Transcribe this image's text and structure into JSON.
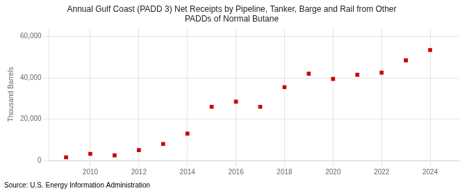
{
  "chart_data": {
    "type": "scatter",
    "title": "Annual Gulf Coast (PADD 3) Net Receipts by Pipeline, Tanker, Barge and Rail from Other\nPADDs of Normal Butane",
    "ylabel": "Thousand Barrels",
    "annotation": "Source: U.S. Energy Information Administration",
    "x": [
      2009,
      2010,
      2011,
      2012,
      2013,
      2014,
      2015,
      2016,
      2017,
      2018,
      2019,
      2020,
      2021,
      2022,
      2023,
      2024
    ],
    "values": [
      1500,
      3200,
      2500,
      5000,
      8000,
      13000,
      26000,
      28500,
      26000,
      35500,
      42000,
      39500,
      41500,
      42500,
      48500,
      53500
    ],
    "color": "#cc0000",
    "marker": "square",
    "xlim": [
      2008.3,
      2025.2
    ],
    "ylim": [
      0,
      64000
    ],
    "xticks": [
      2010,
      2012,
      2014,
      2016,
      2018,
      2020,
      2022,
      2024
    ],
    "yticks": [
      0,
      {
        "value": 20000,
        "label": "20,000"
      },
      {
        "value": 40000,
        "label": "40,000"
      },
      {
        "value": 60000,
        "label": "60,000"
      }
    ],
    "grid": true
  }
}
